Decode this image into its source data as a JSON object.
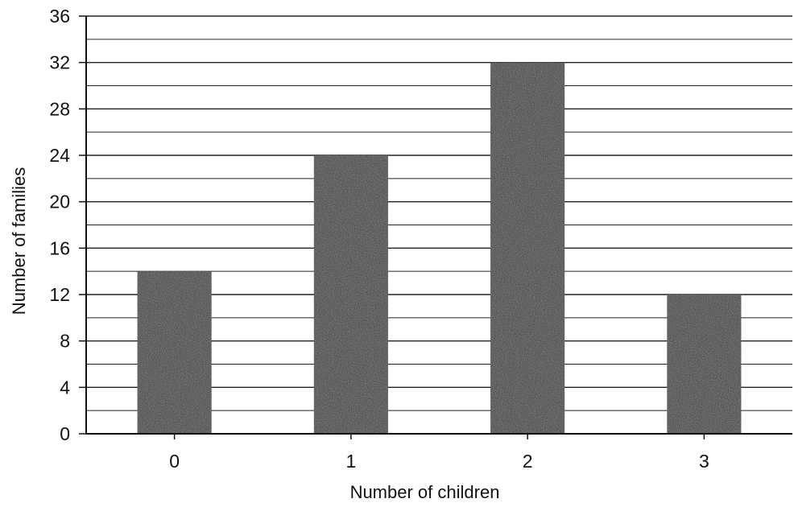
{
  "chart_data": {
    "type": "bar",
    "title": "",
    "xlabel": "Number of children",
    "ylabel": "Number of families",
    "categories": [
      "0",
      "1",
      "2",
      "3"
    ],
    "values": [
      14,
      24,
      32,
      12
    ],
    "ylim": [
      0,
      36
    ],
    "y_ticks": [
      0,
      4,
      8,
      12,
      16,
      20,
      24,
      28,
      32,
      36
    ],
    "minor_gridlines_every": 2,
    "grid": true,
    "legend": "none",
    "colors": {
      "bar": "#3f3f3f",
      "grid": "#222222",
      "axis": "#111111",
      "background": "#ffffff"
    }
  }
}
